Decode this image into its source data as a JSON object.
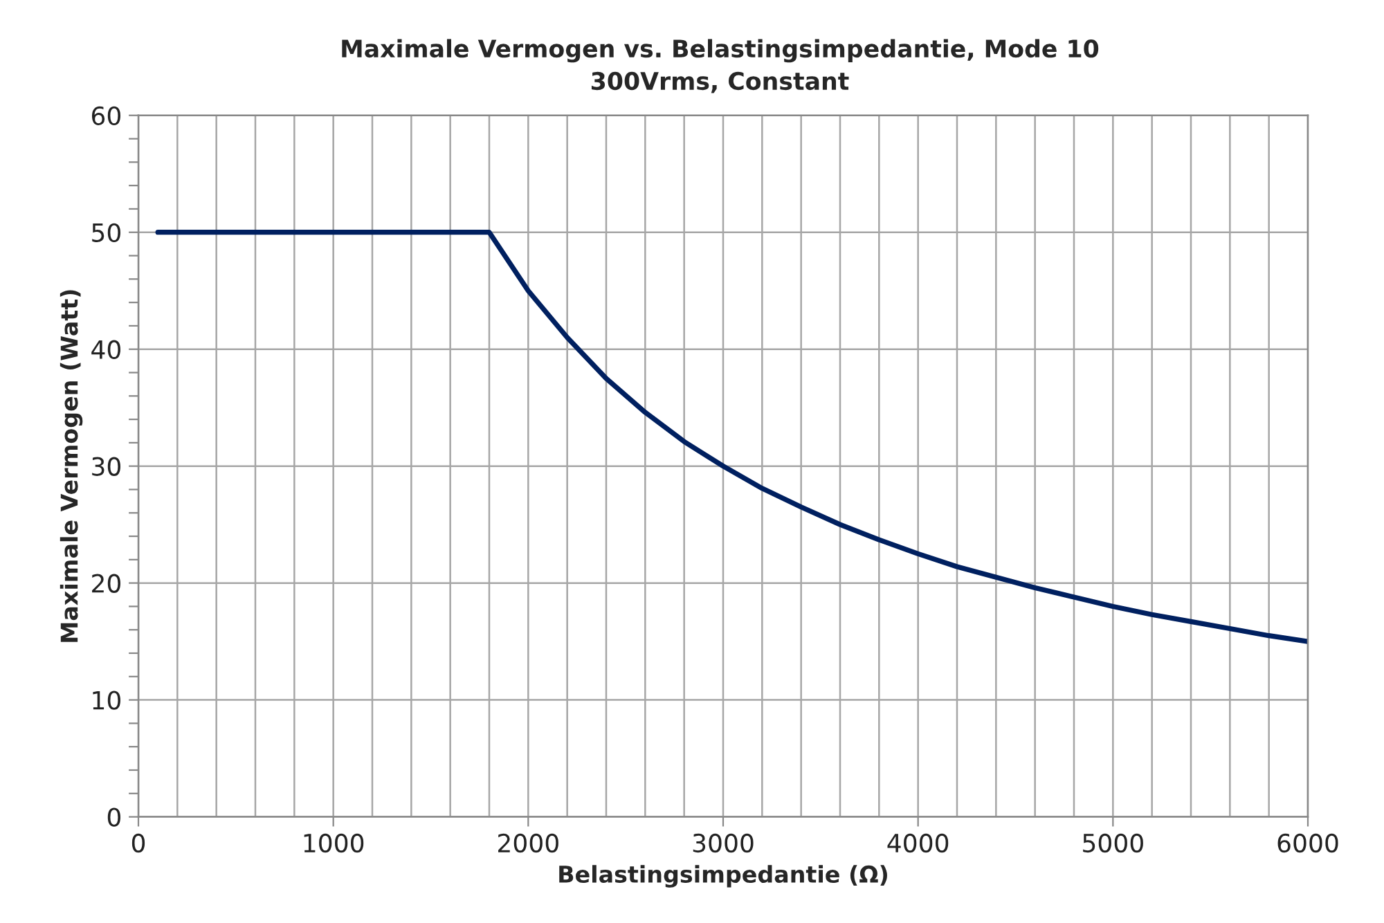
{
  "chart_data": {
    "type": "line",
    "title": "Maximale Vermogen vs. Belastingsimpedantie, Mode 10",
    "subtitle": "300Vrms, Constant",
    "xlabel": "Belastingsimpedantie (Ω)",
    "ylabel": "Maximale Vermogen (Watt)",
    "series": [
      {
        "color": "#002060",
        "x": [
          100,
          1800,
          2000,
          2200,
          2400,
          2600,
          2800,
          3000,
          3200,
          3400,
          3600,
          3800,
          4000,
          4200,
          4400,
          4600,
          4800,
          5000,
          5200,
          5400,
          5600,
          5800,
          6000
        ],
        "values": [
          50,
          50,
          45,
          41,
          37.5,
          34.6,
          32.1,
          30,
          28.1,
          26.5,
          25,
          23.7,
          22.5,
          21.4,
          20.5,
          19.6,
          18.8,
          18,
          17.3,
          16.7,
          16.1,
          15.5,
          15
        ]
      }
    ],
    "xlim": [
      0,
      6000
    ],
    "ylim": [
      0,
      60
    ],
    "xticks": [
      0,
      {
        "value": 200,
        "label": null
      },
      {
        "value": 400,
        "label": null
      },
      {
        "value": 600,
        "label": null
      },
      {
        "value": 800,
        "label": null
      },
      1000,
      {
        "value": 1200,
        "label": null
      },
      {
        "value": 1400,
        "label": null
      },
      {
        "value": 1600,
        "label": null
      },
      {
        "value": 1800,
        "label": null
      },
      2000,
      {
        "value": 2200,
        "label": null
      },
      {
        "value": 2400,
        "label": null
      },
      {
        "value": 2600,
        "label": null
      },
      {
        "value": 2800,
        "label": null
      },
      3000,
      {
        "value": 3200,
        "label": null
      },
      {
        "value": 3400,
        "label": null
      },
      {
        "value": 3600,
        "label": null
      },
      {
        "value": 3800,
        "label": null
      },
      4000,
      {
        "value": 4200,
        "label": null
      },
      {
        "value": 4400,
        "label": null
      },
      {
        "value": 4600,
        "label": null
      },
      {
        "value": 4800,
        "label": null
      },
      5000,
      {
        "value": 5200,
        "label": null
      },
      {
        "value": 5400,
        "label": null
      },
      {
        "value": 5600,
        "label": null
      },
      {
        "value": 5800,
        "label": null
      },
      6000
    ],
    "yticks": [
      0,
      {
        "value": 2,
        "label": null
      },
      {
        "value": 4,
        "label": null
      },
      {
        "value": 6,
        "label": null
      },
      {
        "value": 8,
        "label": null
      },
      10,
      {
        "value": 12,
        "label": null
      },
      {
        "value": 14,
        "label": null
      },
      {
        "value": 16,
        "label": null
      },
      {
        "value": 18,
        "label": null
      },
      20,
      {
        "value": 22,
        "label": null
      },
      {
        "value": 24,
        "label": null
      },
      {
        "value": 26,
        "label": null
      },
      {
        "value": 28,
        "label": null
      },
      30,
      {
        "value": 32,
        "label": null
      },
      {
        "value": 34,
        "label": null
      },
      {
        "value": 36,
        "label": null
      },
      {
        "value": 38,
        "label": null
      },
      40,
      {
        "value": 42,
        "label": null
      },
      {
        "value": 44,
        "label": null
      },
      {
        "value": 46,
        "label": null
      },
      {
        "value": 48,
        "label": null
      },
      50,
      {
        "value": 52,
        "label": null
      },
      {
        "value": 54,
        "label": null
      },
      {
        "value": 56,
        "label": null
      },
      {
        "value": 58,
        "label": null
      },
      60
    ],
    "grid": true,
    "marker": "none",
    "line_style": "solid",
    "legend": false
  }
}
